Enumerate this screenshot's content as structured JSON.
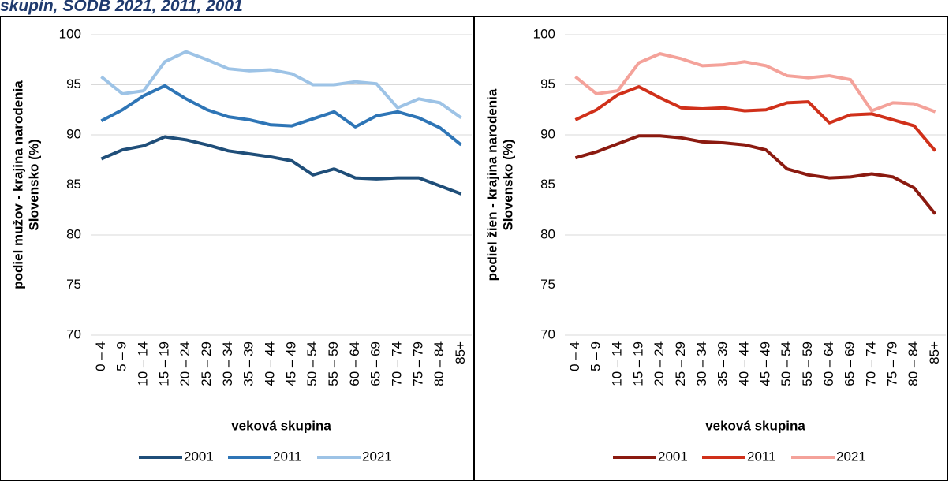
{
  "header": {
    "title": "skupín, SODB 2021, 2011, 2001"
  },
  "chart_data": [
    {
      "type": "line",
      "ylabel": [
        "podiel mužov - krajina narodenia",
        "Slovensko  (%)"
      ],
      "xlabel": "veková skupina",
      "categories": [
        "0 – 4",
        "5 – 9",
        "10 – 14",
        "15 – 19",
        "20 – 24",
        "25 – 29",
        "30 – 34",
        "35 – 39",
        "40 – 44",
        "45 – 49",
        "50 – 54",
        "55 – 59",
        "60 – 64",
        "65 – 69",
        "70 – 74",
        "75 – 79",
        "80 – 84",
        "85+"
      ],
      "series": [
        {
          "name": "2001",
          "color": "#1f4e79",
          "values": [
            87.6,
            88.5,
            88.9,
            89.8,
            89.5,
            89.0,
            88.4,
            88.1,
            87.8,
            87.4,
            86.0,
            86.6,
            85.7,
            85.6,
            85.7,
            85.7,
            84.9,
            84.1
          ]
        },
        {
          "name": "2011",
          "color": "#2e75b6",
          "values": [
            91.4,
            92.5,
            93.9,
            94.9,
            93.6,
            92.5,
            91.8,
            91.5,
            91.0,
            90.9,
            91.6,
            92.3,
            90.8,
            91.9,
            92.3,
            91.7,
            90.7,
            89.0
          ]
        },
        {
          "name": "2021",
          "color": "#9dc3e6",
          "values": [
            95.8,
            94.1,
            94.4,
            97.3,
            98.3,
            97.5,
            96.6,
            96.4,
            96.5,
            96.1,
            95.0,
            95.0,
            95.3,
            95.1,
            92.7,
            93.6,
            93.2,
            91.7
          ]
        }
      ],
      "ylim": [
        70,
        100
      ],
      "yticks": [
        70,
        75,
        80,
        85,
        90,
        95,
        100
      ],
      "grid": true,
      "legend": "bottom"
    },
    {
      "type": "line",
      "ylabel": [
        "podiel žien - krajina narodenia",
        "Slovensko  (%)"
      ],
      "xlabel": "veková skupina",
      "categories": [
        "0 – 4",
        "5 – 9",
        "10 – 14",
        "15 – 19",
        "20 – 24",
        "25 – 29",
        "30 – 34",
        "35 – 39",
        "40 – 44",
        "45 – 49",
        "50 – 54",
        "55 – 59",
        "60 – 64",
        "65 – 69",
        "70 – 74",
        "75 – 79",
        "80 – 84",
        "85+"
      ],
      "series": [
        {
          "name": "2001",
          "color": "#8b1a10",
          "values": [
            87.7,
            88.3,
            89.1,
            89.9,
            89.9,
            89.7,
            89.3,
            89.2,
            89.0,
            88.5,
            86.6,
            86.0,
            85.7,
            85.8,
            86.1,
            85.8,
            84.7,
            82.1
          ]
        },
        {
          "name": "2011",
          "color": "#d0301a",
          "values": [
            91.5,
            92.5,
            94.0,
            94.8,
            93.7,
            92.7,
            92.6,
            92.7,
            92.4,
            92.5,
            93.2,
            93.3,
            91.2,
            92.0,
            92.1,
            91.5,
            90.9,
            88.4
          ]
        },
        {
          "name": "2021",
          "color": "#f4a29a",
          "values": [
            95.8,
            94.1,
            94.4,
            97.2,
            98.1,
            97.6,
            96.9,
            97.0,
            97.3,
            96.9,
            95.9,
            95.7,
            95.9,
            95.5,
            92.4,
            93.2,
            93.1,
            92.3
          ]
        }
      ],
      "ylim": [
        70,
        100
      ],
      "yticks": [
        70,
        75,
        80,
        85,
        90,
        95,
        100
      ],
      "grid": true,
      "legend": "bottom"
    }
  ]
}
